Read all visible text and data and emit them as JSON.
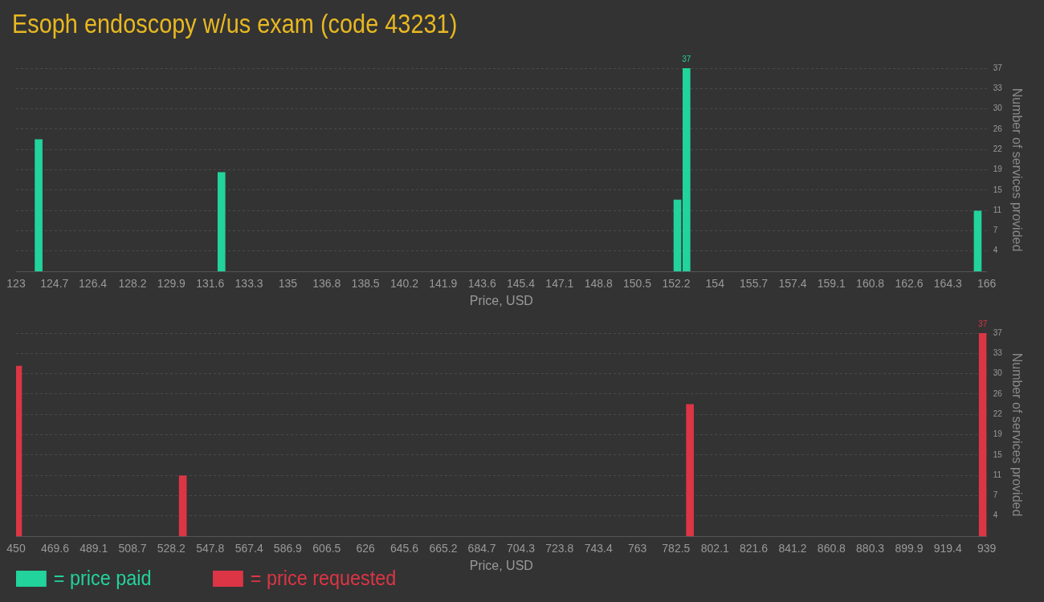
{
  "chart_data": [
    {
      "type": "bar",
      "title": "Esoph endoscopy w/us exam (code 43231)",
      "xlabel": "Price, USD",
      "ylabel": "Number of services provided",
      "x": [
        124,
        132.1,
        152.3,
        152.7,
        165.6
      ],
      "series": [
        {
          "name": "= price paid",
          "color": "#22d39b",
          "values": [
            24,
            18,
            13,
            37,
            11
          ],
          "value_labels": [
            null,
            null,
            null,
            "37",
            null
          ]
        }
      ],
      "xlim": [
        123,
        166
      ],
      "xticks": [
        123,
        124.7,
        126.4,
        {
          "value": 128.16,
          "label": "128.2"
        },
        {
          "value": 129.88,
          "label": "129.9"
        },
        131.6,
        {
          "value": 133.32,
          "label": "133.3"
        },
        {
          "value": 135.04,
          "label": "135"
        },
        {
          "value": 136.76,
          "label": "136.8"
        },
        {
          "value": 138.48,
          "label": "138.5"
        },
        140.2,
        {
          "value": 141.92,
          "label": "141.9"
        },
        {
          "value": 143.64,
          "label": "143.6"
        },
        {
          "value": 145.36,
          "label": "145.4"
        },
        {
          "value": 147.08,
          "label": "147.1"
        },
        148.8,
        {
          "value": 150.52,
          "label": "150.5"
        },
        {
          "value": 152.24,
          "label": "152.2"
        },
        {
          "value": 153.96,
          "label": "154"
        },
        {
          "value": 155.68,
          "label": "155.7"
        },
        157.4,
        {
          "value": 159.12,
          "label": "159.1"
        },
        {
          "value": 160.84,
          "label": "160.8"
        },
        {
          "value": 162.56,
          "label": "162.6"
        },
        {
          "value": 164.28,
          "label": "164.3"
        },
        166
      ],
      "ylim": [
        0,
        37
      ],
      "yticks": [
        {
          "value": 3.7,
          "label": "4"
        },
        {
          "value": 7.4,
          "label": "7"
        },
        {
          "value": 11.1,
          "label": "11"
        },
        {
          "value": 14.8,
          "label": "15"
        },
        {
          "value": 18.5,
          "label": "19"
        },
        {
          "value": 22.2,
          "label": "22"
        },
        {
          "value": 25.9,
          "label": "26"
        },
        {
          "value": 29.6,
          "label": "30"
        },
        {
          "value": 33.3,
          "label": "33"
        },
        37
      ],
      "grid": "y",
      "legend": "bottom"
    },
    {
      "type": "bar",
      "xlabel": "Price, USD",
      "ylabel": "Number of services provided",
      "x": [
        451,
        534,
        789.5,
        937
      ],
      "series": [
        {
          "name": "= price requested",
          "color": "#dc3545",
          "values": [
            31,
            11,
            24,
            37
          ],
          "value_labels": [
            null,
            null,
            null,
            "37"
          ]
        }
      ],
      "xlim": [
        450,
        939
      ],
      "xticks": [
        450,
        469.6,
        489.1,
        508.7,
        528.2,
        547.8,
        567.4,
        586.9,
        606.5,
        {
          "value": 626.04,
          "label": "626"
        },
        645.6,
        665.2,
        684.7,
        704.3,
        723.8,
        743.4,
        {
          "value": 762.96,
          "label": "763"
        },
        782.5,
        802.1,
        821.6,
        841.2,
        860.8,
        880.3,
        899.9,
        919.4,
        939
      ],
      "ylim": [
        0,
        37
      ],
      "yticks": [
        {
          "value": 3.7,
          "label": "4"
        },
        {
          "value": 7.4,
          "label": "7"
        },
        {
          "value": 11.1,
          "label": "11"
        },
        {
          "value": 14.8,
          "label": "15"
        },
        {
          "value": 18.5,
          "label": "19"
        },
        {
          "value": 22.2,
          "label": "22"
        },
        {
          "value": 25.9,
          "label": "26"
        },
        {
          "value": 29.6,
          "label": "30"
        },
        {
          "value": 33.3,
          "label": "33"
        },
        37
      ],
      "grid": "y",
      "legend": "bottom"
    }
  ]
}
